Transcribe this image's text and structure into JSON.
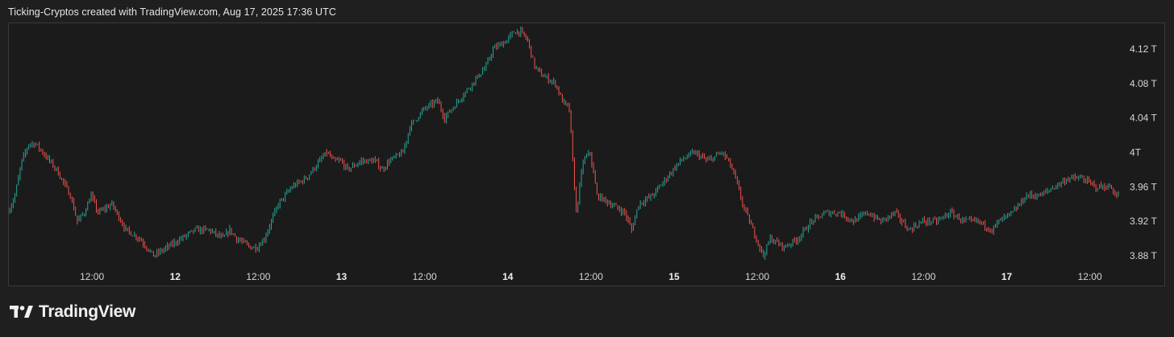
{
  "header": {
    "caption": "Ticking-Cryptos created with TradingView.com, Aug 17, 2025 17:36 UTC"
  },
  "brand": {
    "name": "TradingView",
    "icon": "tradingview-logo-icon"
  },
  "colors": {
    "up": "#26a69a",
    "down": "#ef5350",
    "background": "#1b1b1b",
    "frame": "#3a3a3a"
  },
  "chart_data": {
    "type": "candlestick",
    "title": "",
    "xlabel": "",
    "ylabel": "",
    "ylim": [
      3.87,
      4.15
    ],
    "y_unit": "T",
    "y_ticks": [
      {
        "value": 4.12,
        "label": "4.12 T"
      },
      {
        "value": 4.08,
        "label": "4.08 T"
      },
      {
        "value": 4.04,
        "label": "4.04 T"
      },
      {
        "value": 4.0,
        "label": "4T"
      },
      {
        "value": 3.96,
        "label": "3.96 T"
      },
      {
        "value": 3.92,
        "label": "3.92 T"
      },
      {
        "value": 3.88,
        "label": "3.88 T"
      }
    ],
    "x_range_hours": [
      0,
      160
    ],
    "x_ticks": [
      {
        "hour": 12,
        "label": "12:00",
        "bold": false
      },
      {
        "hour": 24,
        "label": "12",
        "bold": true
      },
      {
        "hour": 36,
        "label": "12:00",
        "bold": false
      },
      {
        "hour": 48,
        "label": "13",
        "bold": true
      },
      {
        "hour": 60,
        "label": "12:00",
        "bold": false
      },
      {
        "hour": 72,
        "label": "14",
        "bold": true
      },
      {
        "hour": 84,
        "label": "12:00",
        "bold": false
      },
      {
        "hour": 96,
        "label": "15",
        "bold": true
      },
      {
        "hour": 108,
        "label": "12:00",
        "bold": false
      },
      {
        "hour": 120,
        "label": "16",
        "bold": true
      },
      {
        "hour": 132,
        "label": "12:00",
        "bold": false
      },
      {
        "hour": 144,
        "label": "17",
        "bold": true
      },
      {
        "hour": 156,
        "label": "12:00",
        "bold": false
      }
    ],
    "grid": false,
    "legend": "none",
    "price_path": [
      [
        0,
        3.93
      ],
      [
        1,
        3.95
      ],
      [
        2,
        3.99
      ],
      [
        3,
        4.01
      ],
      [
        4,
        4.01
      ],
      [
        5,
        4.0
      ],
      [
        6,
        3.99
      ],
      [
        7,
        3.98
      ],
      [
        9,
        3.95
      ],
      [
        10,
        3.92
      ],
      [
        11,
        3.93
      ],
      [
        12,
        3.95
      ],
      [
        13,
        3.93
      ],
      [
        15,
        3.94
      ],
      [
        17,
        3.91
      ],
      [
        19,
        3.9
      ],
      [
        21,
        3.88
      ],
      [
        23,
        3.89
      ],
      [
        25,
        3.9
      ],
      [
        27,
        3.91
      ],
      [
        29,
        3.91
      ],
      [
        31,
        3.9
      ],
      [
        32,
        3.91
      ],
      [
        33,
        3.9
      ],
      [
        35,
        3.89
      ],
      [
        36,
        3.89
      ],
      [
        37,
        3.9
      ],
      [
        38,
        3.92
      ],
      [
        39,
        3.94
      ],
      [
        40,
        3.95
      ],
      [
        41,
        3.96
      ],
      [
        43,
        3.97
      ],
      [
        45,
        3.99
      ],
      [
        46,
        4.0
      ],
      [
        47,
        3.99
      ],
      [
        48,
        3.99
      ],
      [
        49,
        3.98
      ],
      [
        51,
        3.99
      ],
      [
        53,
        3.99
      ],
      [
        54,
        3.98
      ],
      [
        55,
        3.99
      ],
      [
        57,
        4.0
      ],
      [
        58,
        4.03
      ],
      [
        60,
        4.05
      ],
      [
        62,
        4.06
      ],
      [
        63,
        4.04
      ],
      [
        64,
        4.05
      ],
      [
        66,
        4.07
      ],
      [
        68,
        4.09
      ],
      [
        69,
        4.1
      ],
      [
        70,
        4.12
      ],
      [
        72,
        4.13
      ],
      [
        73,
        4.14
      ],
      [
        74,
        4.14
      ],
      [
        75,
        4.13
      ],
      [
        76,
        4.1
      ],
      [
        77,
        4.09
      ],
      [
        79,
        4.08
      ],
      [
        80,
        4.06
      ],
      [
        81,
        4.05
      ],
      [
        82,
        3.93
      ],
      [
        83,
        3.99
      ],
      [
        84,
        4.0
      ],
      [
        85,
        3.95
      ],
      [
        87,
        3.94
      ],
      [
        89,
        3.93
      ],
      [
        90,
        3.91
      ],
      [
        91,
        3.94
      ],
      [
        93,
        3.95
      ],
      [
        95,
        3.97
      ],
      [
        97,
        3.99
      ],
      [
        99,
        4.0
      ],
      [
        101,
        3.99
      ],
      [
        103,
        4.0
      ],
      [
        104,
        3.99
      ],
      [
        105,
        3.97
      ],
      [
        106,
        3.94
      ],
      [
        107,
        3.92
      ],
      [
        108,
        3.9
      ],
      [
        109,
        3.88
      ],
      [
        110,
        3.9
      ],
      [
        112,
        3.89
      ],
      [
        114,
        3.9
      ],
      [
        116,
        3.92
      ],
      [
        118,
        3.93
      ],
      [
        120,
        3.93
      ],
      [
        122,
        3.92
      ],
      [
        124,
        3.93
      ],
      [
        126,
        3.92
      ],
      [
        128,
        3.93
      ],
      [
        130,
        3.91
      ],
      [
        132,
        3.92
      ],
      [
        134,
        3.92
      ],
      [
        136,
        3.93
      ],
      [
        138,
        3.92
      ],
      [
        140,
        3.92
      ],
      [
        142,
        3.91
      ],
      [
        143,
        3.92
      ],
      [
        145,
        3.93
      ],
      [
        147,
        3.95
      ],
      [
        149,
        3.95
      ],
      [
        151,
        3.96
      ],
      [
        153,
        3.97
      ],
      [
        155,
        3.97
      ],
      [
        157,
        3.96
      ],
      [
        159,
        3.96
      ],
      [
        160,
        3.95
      ]
    ]
  }
}
